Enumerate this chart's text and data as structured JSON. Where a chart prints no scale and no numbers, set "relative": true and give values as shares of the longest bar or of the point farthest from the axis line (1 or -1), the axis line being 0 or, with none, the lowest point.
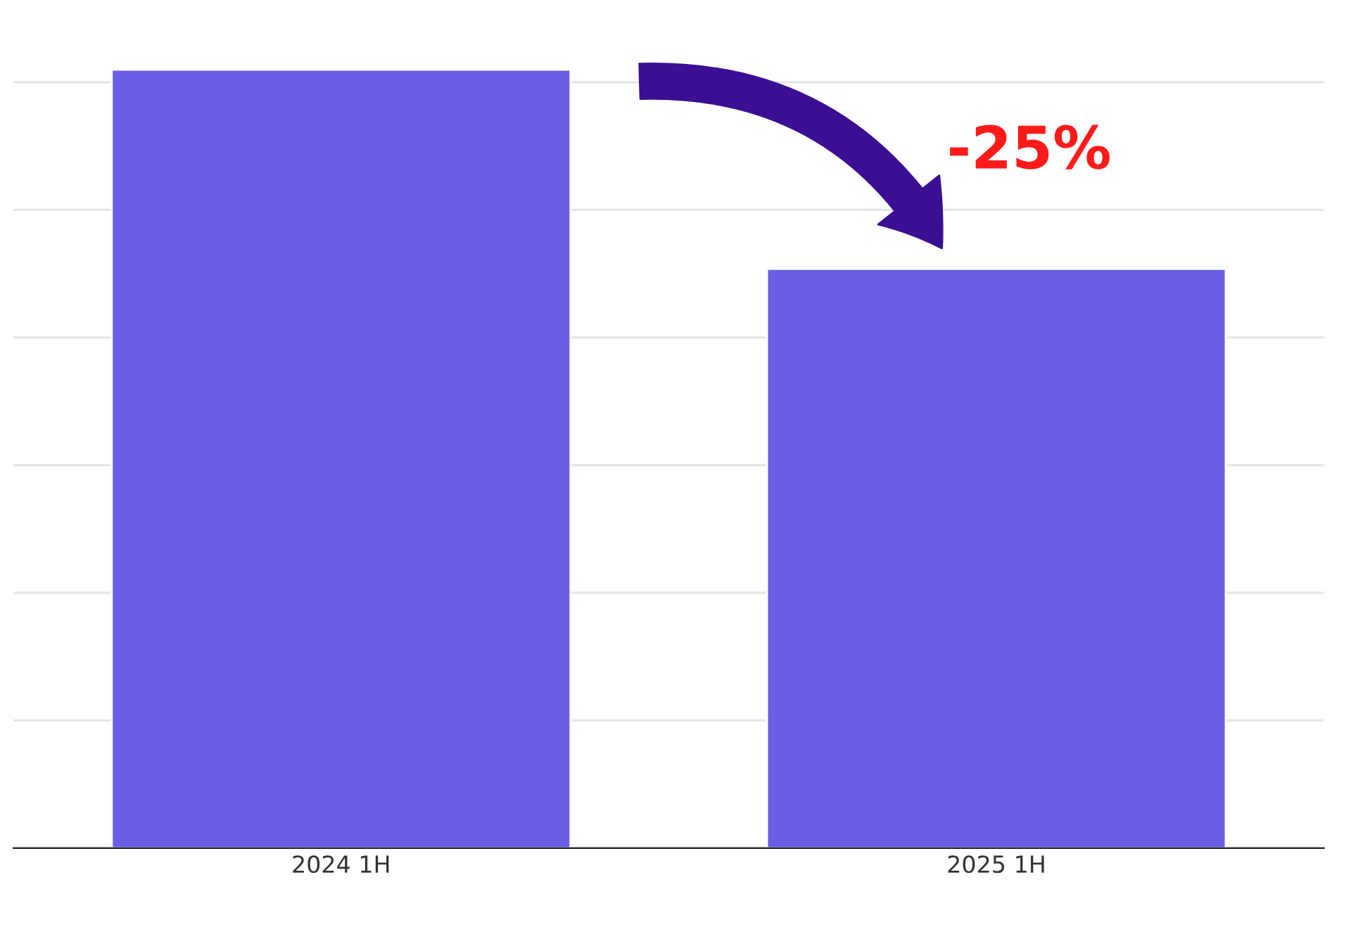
{
  "chart_data": {
    "type": "bar",
    "relative": true,
    "categories": [
      "2024 1H",
      "2025 1H"
    ],
    "series": [
      {
        "color": "#6a5ee6",
        "values": [
          1,
          0.744
        ]
      }
    ],
    "annotations": [
      "-25%"
    ],
    "grid": "y"
  }
}
